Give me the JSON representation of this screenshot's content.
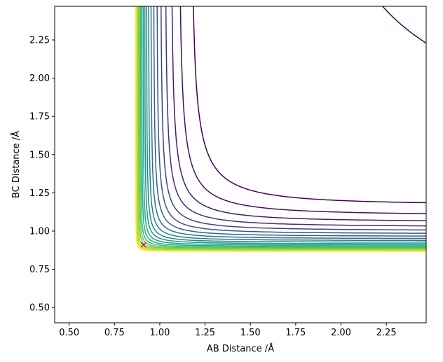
{
  "chart_data": {
    "type": "contour",
    "xlabel": "AB Distance /Å",
    "ylabel": "BC Distance /Å",
    "xlim": [
      0.42,
      2.47
    ],
    "ylim": [
      0.4,
      2.47
    ],
    "xticks": [
      0.5,
      0.75,
      1.0,
      1.25,
      1.5,
      1.75,
      2.0,
      2.25
    ],
    "yticks": [
      0.5,
      0.75,
      1.0,
      1.25,
      1.5,
      1.75,
      2.0,
      2.25
    ],
    "xtick_labels": [
      "0.50",
      "0.75",
      "1.00",
      "1.25",
      "1.50",
      "1.75",
      "2.00",
      "2.25"
    ],
    "ytick_labels": [
      "0.50",
      "0.75",
      "1.00",
      "1.25",
      "1.50",
      "1.75",
      "2.00",
      "2.25"
    ],
    "colormap": "viridis",
    "contour_levels": 20,
    "grid": false,
    "marker": {
      "x": 0.91,
      "y": 0.91,
      "symbol": "x",
      "color": "#ff0000"
    },
    "surface": {
      "form": "symmetric repulsive walls with a reaction valley along both axes",
      "valley_asymptote_x": 0.84,
      "valley_asymptote_y": 0.84
    }
  }
}
